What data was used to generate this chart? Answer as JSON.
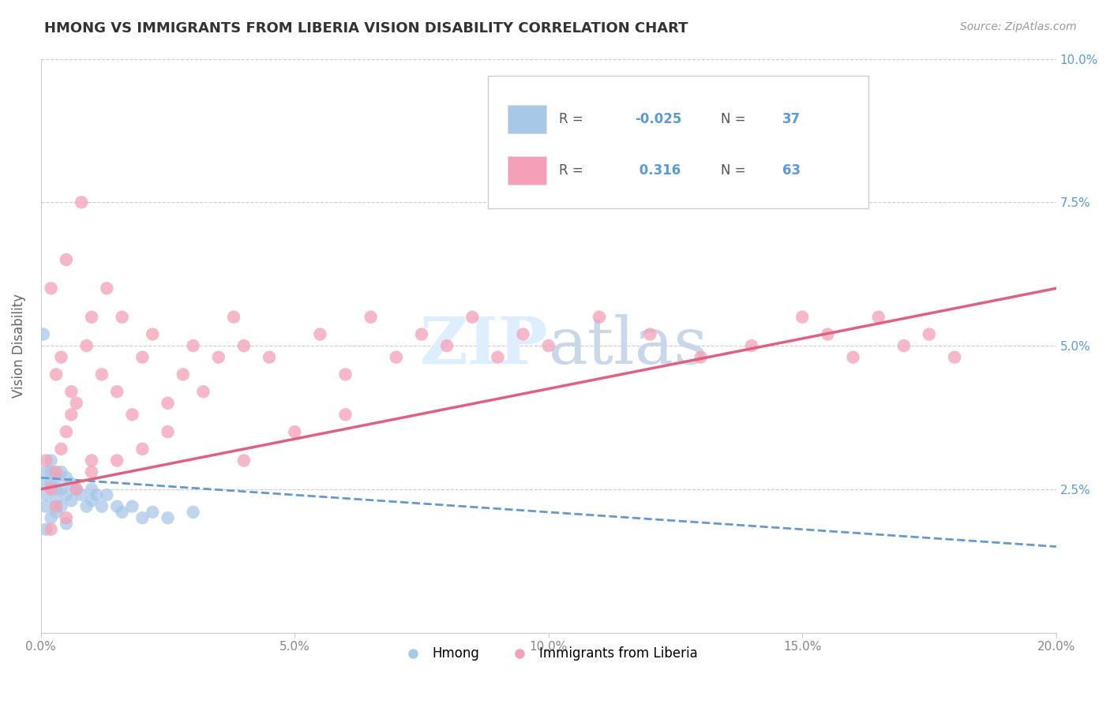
{
  "title": "HMONG VS IMMIGRANTS FROM LIBERIA VISION DISABILITY CORRELATION CHART",
  "source": "Source: ZipAtlas.com",
  "ylabel": "Vision Disability",
  "xlim": [
    0,
    0.2
  ],
  "ylim": [
    0,
    0.1
  ],
  "xticks": [
    0.0,
    0.05,
    0.1,
    0.15,
    0.2
  ],
  "xtick_labels": [
    "0.0%",
    "5.0%",
    "10.0%",
    "15.0%",
    "20.0%"
  ],
  "yticks": [
    0.0,
    0.025,
    0.05,
    0.075,
    0.1
  ],
  "ytick_labels": [
    "",
    "2.5%",
    "5.0%",
    "7.5%",
    "10.0%"
  ],
  "hmong_R": -0.025,
  "hmong_N": 37,
  "liberia_R": 0.316,
  "liberia_N": 63,
  "hmong_color": "#a8c8e8",
  "liberia_color": "#f4a0b8",
  "hmong_line_color": "#6699cc",
  "liberia_line_color": "#e06080",
  "watermark_color": "#ddeeff",
  "legend_labels": [
    "Hmong",
    "Immigrants from Liberia"
  ],
  "blue_text_color": "#5b9bd5",
  "title_color": "#333333",
  "source_color": "#999999",
  "grid_color": "#cccccc",
  "ylabel_color": "#666666",
  "tick_color": "#888888",
  "hmong_line_y0": 0.027,
  "hmong_line_y1": 0.015,
  "liberia_line_y0": 0.025,
  "liberia_line_y1": 0.06
}
